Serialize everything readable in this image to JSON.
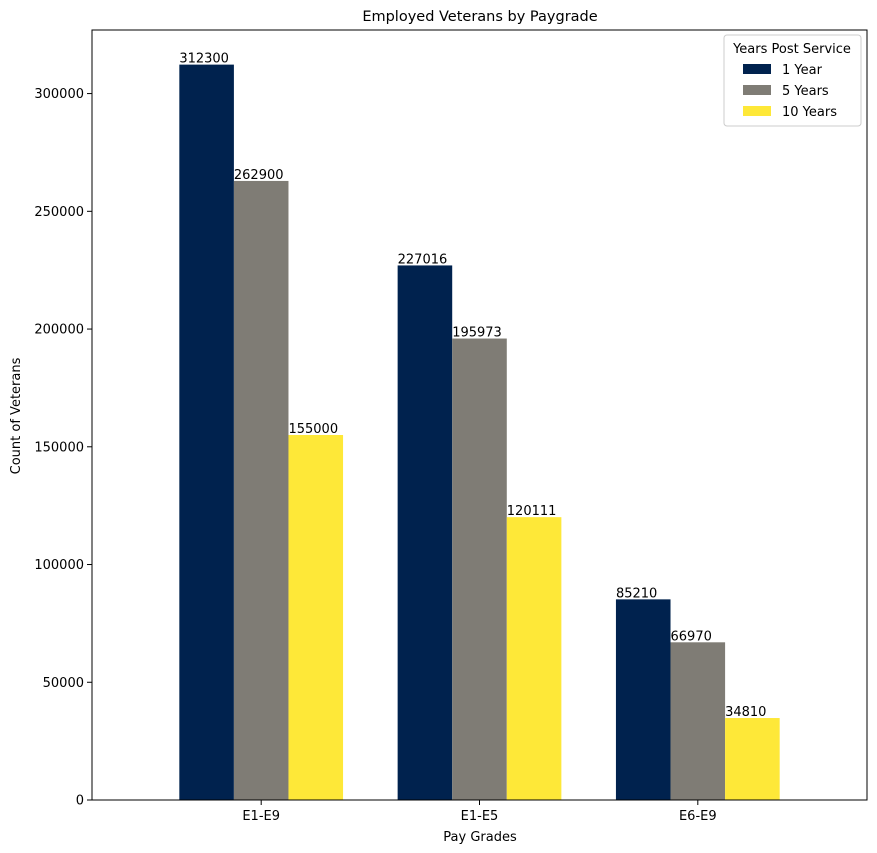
{
  "chart_data": {
    "type": "bar",
    "title": "Employed Veterans by Paygrade",
    "xlabel": "Pay Grades",
    "ylabel": "Count of Veterans",
    "categories": [
      "E1-E9",
      "E1-E5",
      "E6-E9"
    ],
    "series": [
      {
        "name": "1 Year",
        "color": "#00224e",
        "values": [
          312300,
          227016,
          85210
        ]
      },
      {
        "name": "5 Years",
        "color": "#7f7c75",
        "values": [
          262900,
          195973,
          66970
        ]
      },
      {
        "name": "10 Years",
        "color": "#fee838",
        "values": [
          155000,
          120111,
          34810
        ]
      }
    ],
    "legend": {
      "title": "Years Post Service",
      "placement": "top-right"
    },
    "ylim": [
      0,
      327000
    ],
    "yticks": [
      0,
      50000,
      100000,
      150000,
      200000,
      250000,
      300000
    ],
    "grid": false
  }
}
